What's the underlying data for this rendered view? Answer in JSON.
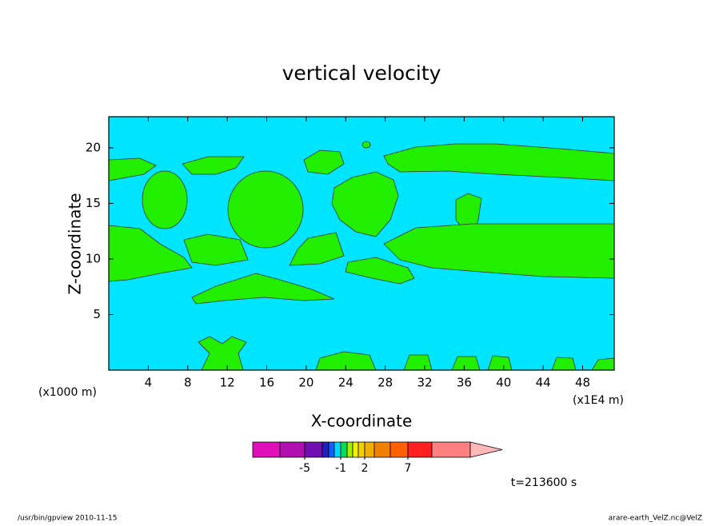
{
  "chart_data": {
    "type": "contour",
    "title": "vertical velocity",
    "x_label": "X-coordinate",
    "y_label": "Z-coordinate",
    "x_unit_left": "(x1000 m)",
    "x_unit_right": "(x1E4 m)",
    "xlim": [
      0,
      51.2
    ],
    "xticks": [
      4,
      8,
      12,
      16,
      20,
      24,
      28,
      32,
      36,
      40,
      44,
      48
    ],
    "ylim": [
      0,
      22.8
    ],
    "yticks": [
      5,
      10,
      15,
      20
    ],
    "colorbar": {
      "levels": [
        -10,
        -5,
        -3,
        -2,
        -1.5,
        -1,
        0,
        0.5,
        1,
        2,
        3,
        5,
        7,
        10,
        15
      ],
      "colors": [
        "#e010b8",
        "#b010b0",
        "#7010b0",
        "#2020c0",
        "#1060ff",
        "#00d8ff",
        "#00e060",
        "#a0f000",
        "#f0f000",
        "#f0d000",
        "#f0b000",
        "#f08000",
        "#ff6000",
        "#ff2020",
        "#ff8080",
        "#ffb8b8"
      ],
      "ticks": [
        -5,
        -1,
        2,
        7
      ]
    },
    "annotation": "t=213600 s",
    "footer_left": "/usr/bin/gpview   2010-11-15",
    "footer_right": "arare-earth_VelZ.nc@VelZ"
  }
}
